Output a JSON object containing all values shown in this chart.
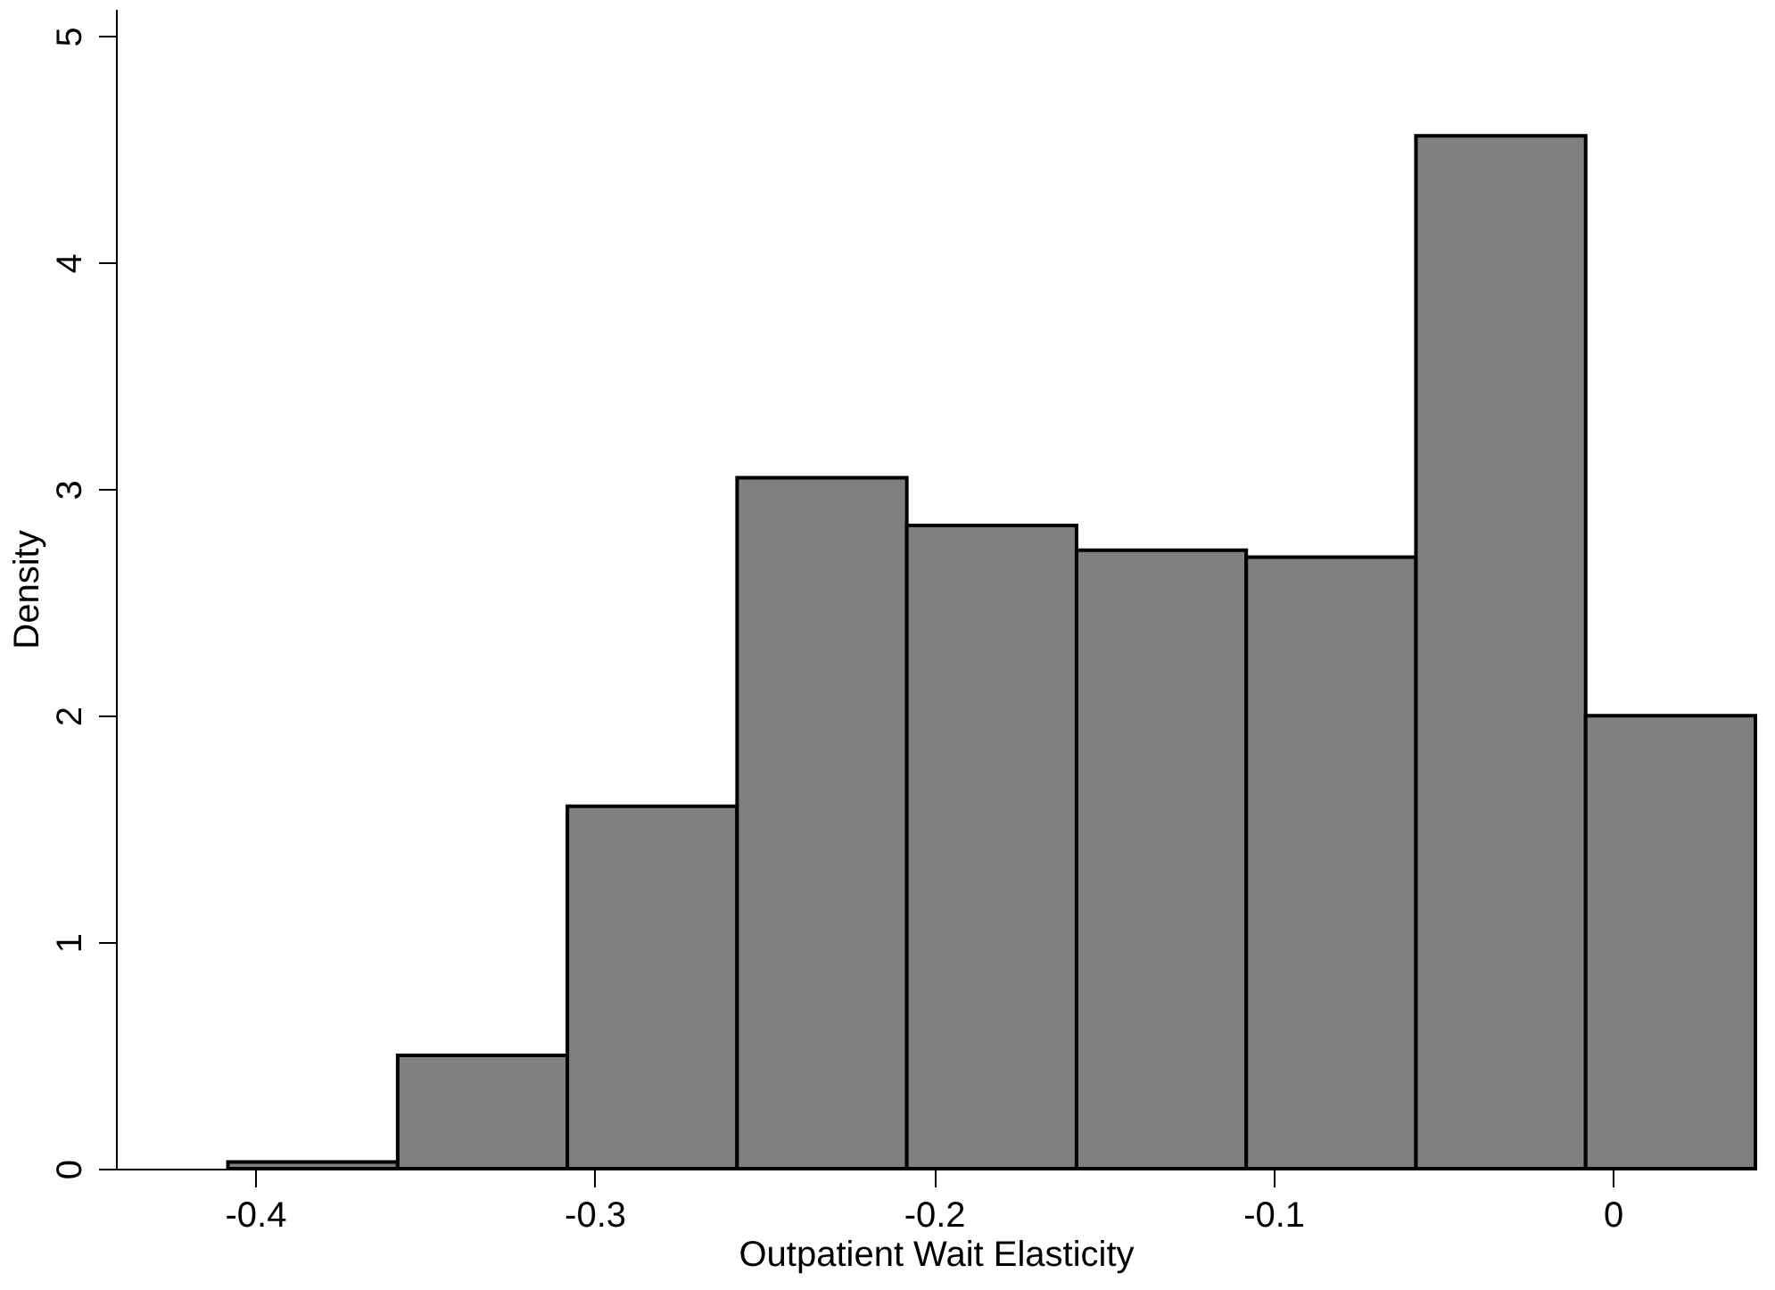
{
  "chart_data": {
    "type": "histogram",
    "xlabel": "Outpatient Wait Elasticity",
    "ylabel": "Density",
    "bins": [
      -0.408,
      -0.358,
      -0.308,
      -0.258,
      -0.208,
      -0.158,
      -0.108,
      -0.058,
      -0.008,
      0.042
    ],
    "values": [
      0.03,
      0.5,
      1.6,
      3.05,
      2.84,
      2.73,
      2.7,
      4.56,
      2.0
    ],
    "color": "#808080",
    "xlim": [
      -0.441,
      0.042
    ],
    "ylim": [
      0,
      5.12
    ],
    "xticks": [
      -0.4,
      -0.3,
      -0.2,
      -0.1,
      0
    ],
    "yticks": [
      0,
      1,
      2,
      3,
      4,
      5
    ],
    "grid": false
  }
}
